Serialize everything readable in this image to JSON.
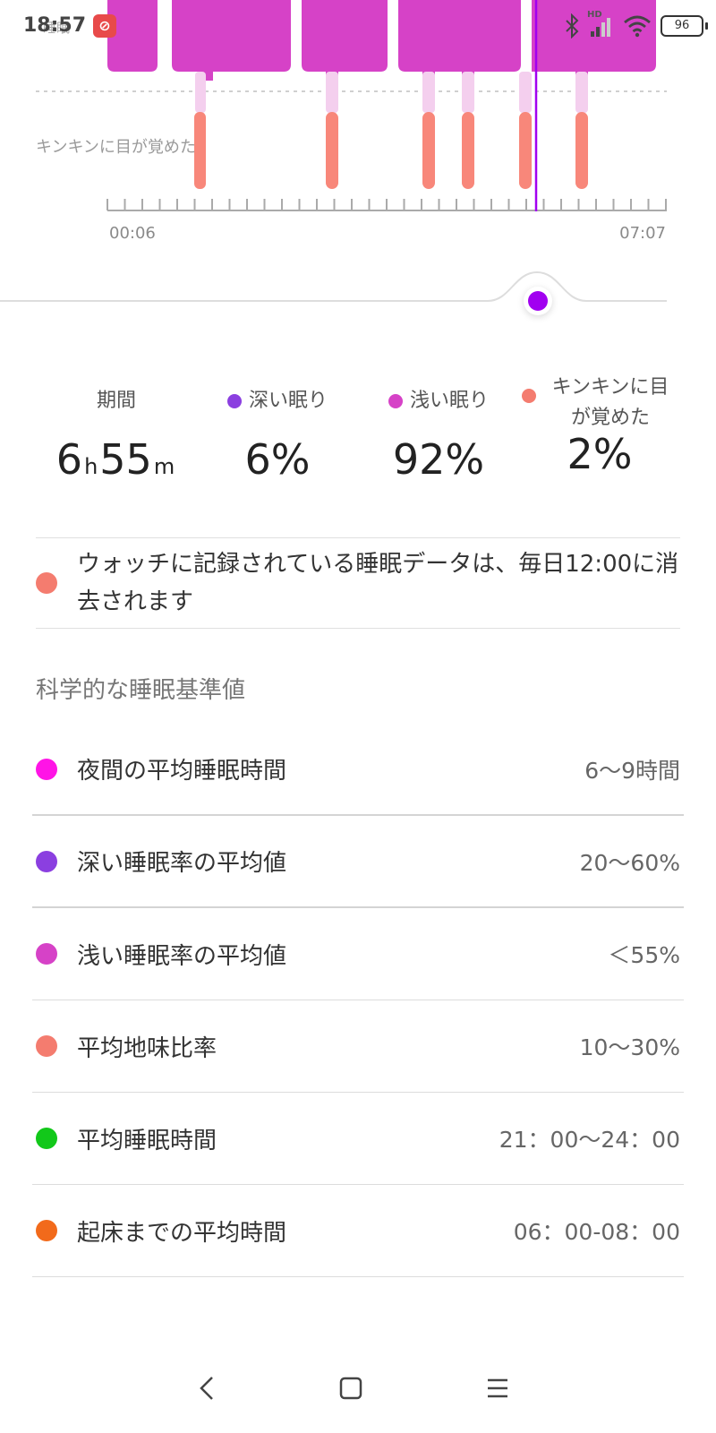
{
  "status_bar": {
    "time": "18:57",
    "ghost_text": "睡眠",
    "app_badge": "⊘",
    "hd_label": "HD",
    "battery": "96"
  },
  "chart": {
    "awake_label": "キンキンに目が覚めた",
    "start_time": "00:06",
    "end_time": "07:07",
    "colors": {
      "light": "#d642c7",
      "awake": "#f8877a",
      "deep": "#8b3fe0",
      "cursor": "#a100f0"
    }
  },
  "summary": {
    "duration": {
      "label": "期間",
      "hours": "6",
      "h_unit": "h",
      "minutes": "55",
      "m_unit": "m"
    },
    "deep": {
      "label": "深い眠り",
      "value": "6%",
      "color": "#8b3fe0"
    },
    "light": {
      "label": "浅い眠り",
      "value": "92%",
      "color": "#d642c7"
    },
    "awake": {
      "label": "キンキンに目が覚めた",
      "value": "2%",
      "color": "#f47c6f"
    }
  },
  "notice": {
    "text": "ウォッチに記録されている睡眠データは、毎日12:00に消去されます",
    "color": "#f47c6f"
  },
  "reference": {
    "heading": "科学的な睡眠基準値",
    "items": [
      {
        "label": "夜間の平均睡眠時間",
        "value": "6～9時間",
        "color": "#ff14e6"
      },
      {
        "label": "深い睡眠率の平均値",
        "value": "20～60%",
        "color": "#8b3fe0"
      },
      {
        "label": "浅い睡眠率の平均値",
        "value": "＜55%",
        "color": "#d642c7"
      },
      {
        "label": "平均地味比率",
        "value": "10～30%",
        "color": "#f47c6f"
      },
      {
        "label": "平均睡眠時間",
        "value": "21：00～24：00",
        "color": "#12c81a"
      },
      {
        "label": "起床までの平均時間",
        "value": "06：00-08：00",
        "color": "#f26a1b"
      }
    ]
  }
}
